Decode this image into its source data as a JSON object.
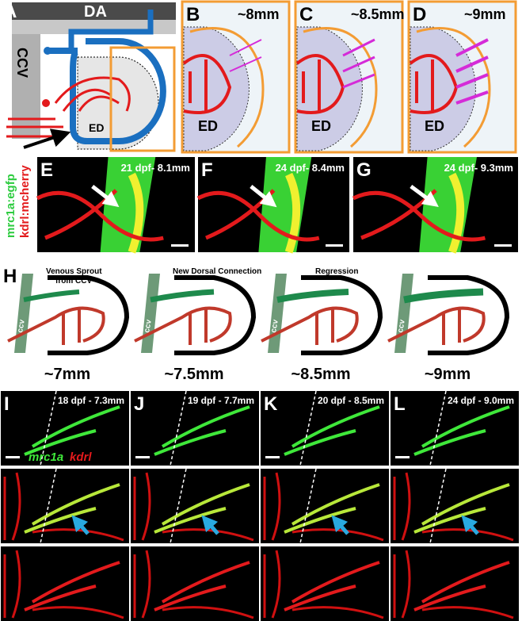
{
  "panel_a": {
    "label": "A",
    "da": "DA",
    "ccv": "CCV",
    "ed": "ED"
  },
  "panels_bd": [
    {
      "label": "B",
      "size": "~8mm",
      "ed": "ED"
    },
    {
      "label": "C",
      "size": "~8.5mm",
      "ed": "ED"
    },
    {
      "label": "D",
      "size": "~9mm",
      "ed": "ED"
    }
  ],
  "legend_efg": {
    "green": "mrc1a:egfp",
    "red": "kdrl:mcherry"
  },
  "panels_efg": [
    {
      "label": "E",
      "stage": "21 dpf- 8.1mm"
    },
    {
      "label": "F",
      "stage": "24 dpf- 8.4mm"
    },
    {
      "label": "G",
      "stage": "24 dpf- 9.3mm"
    }
  ],
  "panel_h": {
    "label": "H",
    "annotations": [
      [
        "Venous Sprout",
        "from CCV"
      ],
      [
        "New Dorsal Connection"
      ],
      [
        "Regression"
      ]
    ],
    "diagrams": [
      {
        "ccv": "ccv",
        "size": "~7mm"
      },
      {
        "ccv": "ccv",
        "size": "~7.5mm"
      },
      {
        "ccv": "ccv",
        "size": "~8.5mm"
      },
      {
        "ccv": "ccv",
        "size": "~9mm"
      }
    ]
  },
  "panels_il": [
    {
      "label": "I",
      "stage": "18 dpf - 7.3mm"
    },
    {
      "label": "J",
      "stage": "19 dpf - 7.7mm"
    },
    {
      "label": "K",
      "stage": "20 dpf - 8.5mm"
    },
    {
      "label": "L",
      "stage": "24 dpf - 9.0mm"
    }
  ],
  "legend_il": {
    "green": "mrc1a",
    "red": "kdrl"
  }
}
